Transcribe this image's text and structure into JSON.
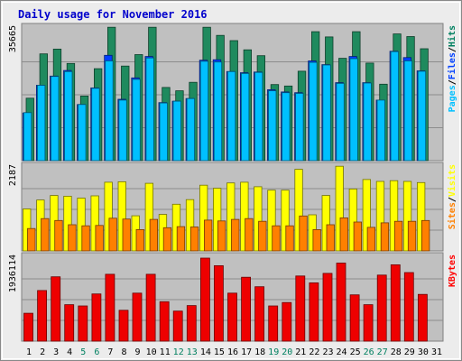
{
  "chart_data": {
    "type": "bar",
    "title": "Daily usage for November 2016",
    "days": [
      "1",
      "2",
      "3",
      "4",
      "5",
      "6",
      "7",
      "8",
      "9",
      "10",
      "11",
      "12",
      "13",
      "14",
      "15",
      "16",
      "17",
      "18",
      "19",
      "20",
      "21",
      "22",
      "23",
      "24",
      "25",
      "26",
      "27",
      "28",
      "29",
      "30",
      "31"
    ],
    "weekend_days": [
      "5",
      "6",
      "12",
      "13",
      "19",
      "20",
      "26",
      "27"
    ],
    "panels": [
      {
        "name": "hits-files-pages",
        "ymax_label": "35665",
        "ymax": 35665,
        "legend": [
          {
            "text": "Pages",
            "color": "#00c0ff"
          },
          {
            "text": "/",
            "color": "#000000"
          },
          {
            "text": "Files",
            "color": "#0040ff"
          },
          {
            "text": "/",
            "color": "#000000"
          },
          {
            "text": "Hits",
            "color": "#008060"
          }
        ],
        "series": [
          {
            "color": "#1f8a5e",
            "values": [
              16900,
              28900,
              30200,
              26300,
              17500,
              24900,
              36100,
              25600,
              28700,
              36100,
              19800,
              18900,
              21200,
              36100,
              33900,
              32500,
              30000,
              28400,
              20600,
              20200,
              24200,
              34900,
              33500,
              27700,
              34900,
              26400,
              20700,
              34300,
              33600,
              30300,
              0
            ]
          },
          {
            "color": "#0040ff",
            "values": [
              12900,
              20400,
              22900,
              24400,
              15200,
              19700,
              28500,
              16600,
              22400,
              28200,
              15700,
              16100,
              16800,
              27200,
              27300,
              24100,
              23800,
              24000,
              19200,
              18600,
              18400,
              27000,
              26000,
              21100,
              28200,
              21100,
              16400,
              29600,
              27900,
              24300,
              0
            ]
          },
          {
            "color": "#00c0ff",
            "values": [
              13000,
              20400,
              22800,
              24100,
              15200,
              19600,
              27000,
              16400,
              22000,
              27800,
              15600,
              16100,
              16800,
              26900,
              26700,
              24100,
              23600,
              23900,
              18900,
              18400,
              18200,
              26600,
              25900,
              20900,
              27600,
              21000,
              16400,
              29500,
              27000,
              24200,
              0
            ]
          }
        ]
      },
      {
        "name": "visits-sites",
        "ymax_label": "2187",
        "ymax": 2187,
        "legend": [
          {
            "text": "Sites",
            "color": "#ff8000"
          },
          {
            "text": "/",
            "color": "#000000"
          },
          {
            "text": "Visits",
            "color": "#ffff00"
          }
        ],
        "series": [
          {
            "color": "#ffff00",
            "values": [
              1105,
              1340,
              1460,
              1440,
              1390,
              1450,
              1810,
              1820,
              925,
              1780,
              960,
              1230,
              1350,
              1730,
              1650,
              1790,
              1810,
              1690,
              1600,
              1600,
              2150,
              950,
              1460,
              2230,
              1630,
              1880,
              1830,
              1850,
              1830,
              1800,
              0
            ]
          },
          {
            "color": "#ff8000",
            "values": [
              590,
              850,
              800,
              690,
              660,
              670,
              860,
              840,
              560,
              830,
              610,
              640,
              630,
              810,
              790,
              830,
              850,
              780,
              660,
              660,
              920,
              560,
              690,
              870,
              760,
              620,
              740,
              780,
              780,
              800,
              0
            ]
          }
        ]
      },
      {
        "name": "kbytes",
        "ymax_label": "1936114",
        "ymax": 1936114,
        "legend": [
          {
            "text": "KBytes",
            "color": "#ff0000"
          }
        ],
        "series": [
          {
            "color": "#ee0000",
            "values": [
              650000,
              1180000,
              1500000,
              850000,
              820000,
              1100000,
              1560000,
              720000,
              1120000,
              1560000,
              920000,
              700000,
              830000,
              1936000,
              1760000,
              1120000,
              1490000,
              1270000,
              820000,
              900000,
              1520000,
              1360000,
              1580000,
              1820000,
              1080000,
              850000,
              1540000,
              1780000,
              1600000,
              1090000,
              0
            ]
          }
        ]
      }
    ]
  }
}
